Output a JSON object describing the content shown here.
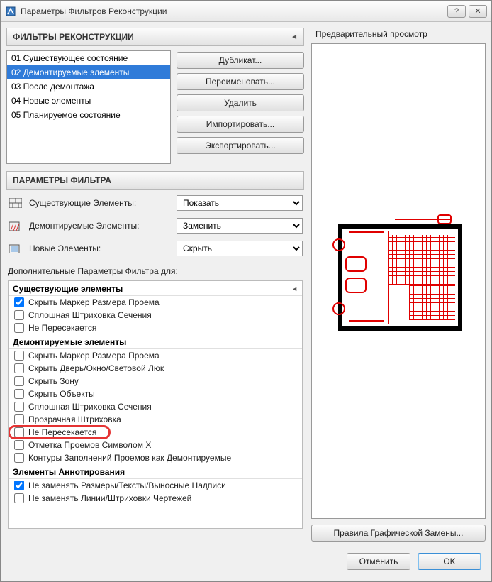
{
  "window": {
    "title": "Параметры Фильтров Реконструкции",
    "help_glyph": "?",
    "close_glyph": "✕"
  },
  "filters_section": {
    "header": "ФИЛЬТРЫ РЕКОНСТРУКЦИИ",
    "items": [
      "01 Существующее состояние",
      "02 Демонтируемые элементы",
      "03 После демонтажа",
      "04 Новые элементы",
      "05 Планируемое состояние"
    ],
    "selected_index": 1,
    "buttons": {
      "duplicate": "Дубликат...",
      "rename": "Переименовать...",
      "delete": "Удалить",
      "import": "Импортировать...",
      "export": "Экспортировать..."
    }
  },
  "params_section": {
    "header": "ПАРАМЕТРЫ ФИЛЬТРА",
    "rows": {
      "existing": {
        "label": "Существующие Элементы:",
        "value": "Показать"
      },
      "demolished": {
        "label": "Демонтируемые Элементы:",
        "value": "Заменить"
      },
      "new": {
        "label": "Новые Элементы:",
        "value": "Скрыть"
      }
    },
    "options": [
      "Показать",
      "Заменить",
      "Скрыть"
    ],
    "extra_label": "Дополнительные Параметры Фильтра для:",
    "groups": [
      {
        "title": "Существующие элементы",
        "items": [
          {
            "label": "Скрыть Маркер Размера Проема",
            "checked": true
          },
          {
            "label": "Сплошная Штриховка Сечения",
            "checked": false
          },
          {
            "label": "Не Пересекается",
            "checked": false
          }
        ]
      },
      {
        "title": "Демонтируемые элементы",
        "items": [
          {
            "label": "Скрыть Маркер Размера Проема",
            "checked": false
          },
          {
            "label": "Скрыть Дверь/Окно/Световой Люк",
            "checked": false
          },
          {
            "label": "Скрыть Зону",
            "checked": false
          },
          {
            "label": "Скрыть Объекты",
            "checked": false
          },
          {
            "label": "Сплошная Штриховка Сечения",
            "checked": false
          },
          {
            "label": "Прозрачная Штриховка",
            "checked": false
          },
          {
            "label": "Не Пересекается",
            "checked": false,
            "highlight": true
          },
          {
            "label": "Отметка Проемов Символом X",
            "checked": false
          },
          {
            "label": "Контуры Заполнений Проемов как Демонтируемые",
            "checked": false
          }
        ]
      },
      {
        "title": "Элементы Аннотирования",
        "items": [
          {
            "label": "Не заменять Размеры/Тексты/Выносные Надписи",
            "checked": true
          },
          {
            "label": "Не заменять Линии/Штриховки Чертежей",
            "checked": false
          }
        ]
      }
    ]
  },
  "preview": {
    "title": "Предварительный просмотр",
    "rules_button": "Правила Графической Замены..."
  },
  "footer": {
    "cancel": "Отменить",
    "ok": "OK"
  },
  "colors": {
    "accent_red": "#e00000",
    "highlight_red": "#e53333",
    "selection_blue": "#2f7bd9"
  }
}
